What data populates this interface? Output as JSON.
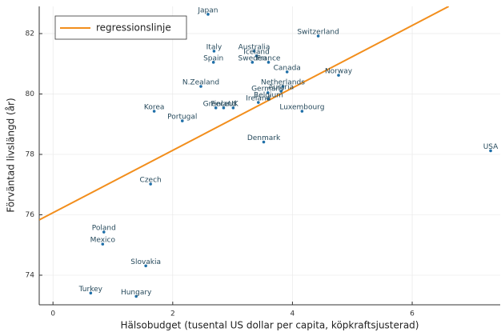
{
  "chart_data": {
    "type": "scatter",
    "x_label": "Hälsobudget (tusental US dollar per capita, köpkraftsjusterad)",
    "y_label": "Förväntad livslängd (år)",
    "color": "#1f6fa8",
    "labels": [
      "Japan",
      "Switzerland",
      "Italy",
      "Australia",
      "Iceland",
      "Spain",
      "Sweden",
      "France",
      "Canada",
      "Norway",
      "N.Zealand",
      "Netherlands",
      "Germany",
      "Austria",
      "Belgium",
      "Ireland",
      "Greece",
      "Finland",
      "UK",
      "Korea",
      "Luxembourg",
      "Portugal",
      "Denmark",
      "USA",
      "Czech",
      "Poland",
      "Mexico",
      "Slovakia",
      "Turkey",
      "Hungary"
    ],
    "x": [
      2.59,
      4.43,
      2.69,
      3.36,
      3.4,
      2.68,
      3.33,
      3.6,
      3.91,
      4.77,
      2.47,
      3.84,
      3.59,
      3.81,
      3.6,
      3.43,
      2.72,
      2.85,
      3.01,
      1.69,
      4.16,
      2.16,
      3.52,
      7.31,
      1.63,
      0.85,
      0.83,
      1.55,
      0.63,
      1.39
    ],
    "values": [
      82.64,
      81.92,
      81.42,
      81.42,
      81.26,
      81.05,
      81.05,
      81.05,
      80.73,
      80.62,
      80.25,
      80.25,
      80.04,
      80.09,
      79.83,
      79.72,
      79.54,
      79.54,
      79.54,
      79.43,
      79.43,
      79.11,
      78.41,
      78.12,
      77.02,
      75.43,
      75.03,
      74.31,
      73.41,
      73.3
    ],
    "lines": [
      {
        "name": "regressionslinje",
        "color": "#f28e1c",
        "x": [
          -0.23,
          6.61
        ],
        "values": [
          75.83,
          82.9
        ]
      }
    ],
    "xlim": [
      -0.23,
      7.47
    ],
    "ylim": [
      73.02,
      82.9
    ],
    "xticks": [
      0,
      2,
      4,
      6
    ],
    "yticks": [
      74,
      76,
      78,
      80,
      82
    ],
    "grid": true,
    "legend": "upper-left"
  }
}
